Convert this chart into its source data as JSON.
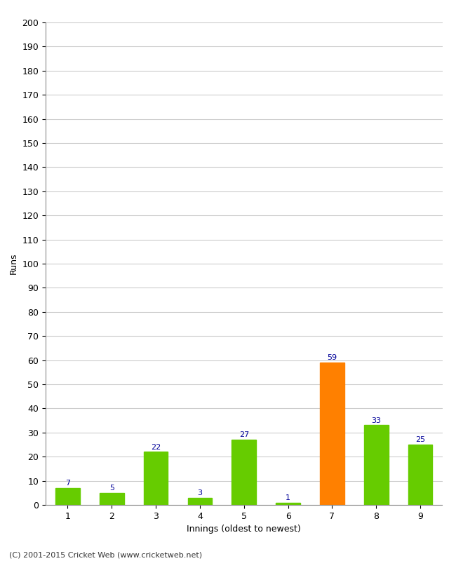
{
  "xlabel": "Innings (oldest to newest)",
  "ylabel": "Runs",
  "categories": [
    "1",
    "2",
    "3",
    "4",
    "5",
    "6",
    "7",
    "8",
    "9"
  ],
  "values": [
    7,
    5,
    22,
    3,
    27,
    1,
    59,
    33,
    25
  ],
  "bar_colors": [
    "#66cc00",
    "#66cc00",
    "#66cc00",
    "#66cc00",
    "#66cc00",
    "#66cc00",
    "#ff8000",
    "#66cc00",
    "#66cc00"
  ],
  "label_color": "#000099",
  "ylim": [
    0,
    200
  ],
  "yticks": [
    0,
    10,
    20,
    30,
    40,
    50,
    60,
    70,
    80,
    90,
    100,
    110,
    120,
    130,
    140,
    150,
    160,
    170,
    180,
    190,
    200
  ],
  "background_color": "#ffffff",
  "grid_color": "#cccccc",
  "footer": "(C) 2001-2015 Cricket Web (www.cricketweb.net)",
  "label_fontsize": 9,
  "bar_label_fontsize": 8,
  "footer_fontsize": 8,
  "tick_fontsize": 9,
  "bar_width": 0.55
}
